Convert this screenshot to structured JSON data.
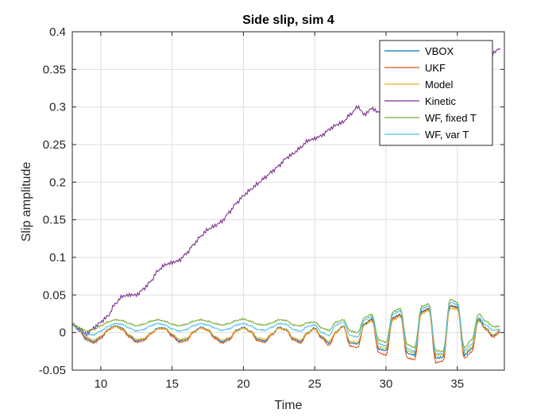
{
  "chart_data": {
    "type": "line",
    "title": "Side slip, sim 4",
    "xlabel": "Time",
    "ylabel": "Slip amplitude",
    "xlim": [
      8,
      38.3
    ],
    "ylim": [
      -0.05,
      0.4
    ],
    "xticks": [
      10,
      15,
      20,
      25,
      30,
      35
    ],
    "yticks": [
      -0.05,
      0,
      0.05,
      0.1,
      0.15,
      0.2,
      0.25,
      0.3,
      0.35,
      0.4
    ],
    "ytick_labels": [
      "-0.05",
      "0",
      "0.05",
      "0.1",
      "0.15",
      "0.2",
      "0.25",
      "0.3",
      "0.35",
      "0.4"
    ],
    "grid": true,
    "legend_position": "top-right",
    "series": [
      {
        "name": "VBOX",
        "color": "#0072BD",
        "x": [
          8.0,
          8.5,
          9.0,
          9.5,
          10.0,
          10.5,
          11.0,
          11.5,
          12.0,
          12.5,
          13.0,
          13.5,
          14.0,
          14.5,
          15.0,
          15.5,
          16.0,
          16.5,
          17.0,
          17.5,
          18.0,
          18.5,
          19.0,
          19.5,
          20.0,
          20.5,
          21.0,
          21.5,
          22.0,
          22.5,
          23.0,
          23.5,
          24.0,
          24.5,
          25.0,
          25.5,
          26.0,
          26.5,
          27.0,
          27.5,
          28.0,
          28.5,
          29.0,
          29.5,
          30.0,
          30.5,
          31.0,
          31.5,
          32.0,
          32.5,
          33.0,
          33.5,
          34.0,
          34.5,
          35.0,
          35.5,
          36.0,
          36.5,
          37.0,
          37.5,
          38.0
        ],
        "y": [
          0.012,
          0.004,
          -0.008,
          -0.012,
          -0.006,
          0.004,
          0.009,
          0.006,
          -0.004,
          -0.011,
          -0.009,
          -0.001,
          0.006,
          0.006,
          -0.003,
          -0.011,
          -0.009,
          0.001,
          0.007,
          0.004,
          -0.006,
          -0.012,
          -0.008,
          0.003,
          0.007,
          0.002,
          -0.009,
          -0.011,
          -0.002,
          0.007,
          0.004,
          -0.008,
          -0.012,
          0.0,
          0.006,
          -0.006,
          -0.014,
          0.001,
          0.009,
          -0.014,
          -0.015,
          0.012,
          0.018,
          -0.022,
          -0.024,
          0.02,
          0.024,
          -0.028,
          -0.03,
          0.028,
          0.032,
          -0.034,
          -0.033,
          0.036,
          0.034,
          -0.03,
          -0.022,
          0.018,
          0.006,
          -0.004,
          0.002
        ]
      },
      {
        "name": "UKF",
        "color": "#D95319",
        "x": [
          8.0,
          8.5,
          9.0,
          9.5,
          10.0,
          10.5,
          11.0,
          11.5,
          12.0,
          12.5,
          13.0,
          13.5,
          14.0,
          14.5,
          15.0,
          15.5,
          16.0,
          16.5,
          17.0,
          17.5,
          18.0,
          18.5,
          19.0,
          19.5,
          20.0,
          20.5,
          21.0,
          21.5,
          22.0,
          22.5,
          23.0,
          23.5,
          24.0,
          24.5,
          25.0,
          25.5,
          26.0,
          26.5,
          27.0,
          27.5,
          28.0,
          28.5,
          29.0,
          29.5,
          30.0,
          30.5,
          31.0,
          31.5,
          32.0,
          32.5,
          33.0,
          33.5,
          34.0,
          34.5,
          35.0,
          35.5,
          36.0,
          36.5,
          37.0,
          37.5,
          38.0
        ],
        "y": [
          0.01,
          0.002,
          -0.01,
          -0.014,
          -0.008,
          0.003,
          0.008,
          0.004,
          -0.006,
          -0.013,
          -0.011,
          -0.002,
          0.005,
          0.005,
          -0.005,
          -0.013,
          -0.011,
          0.0,
          0.006,
          0.003,
          -0.008,
          -0.014,
          -0.01,
          0.002,
          0.006,
          0.001,
          -0.011,
          -0.013,
          -0.003,
          0.006,
          0.003,
          -0.01,
          -0.014,
          -0.001,
          0.005,
          -0.008,
          -0.017,
          0.0,
          0.008,
          -0.018,
          -0.02,
          0.011,
          0.017,
          -0.027,
          -0.03,
          0.019,
          0.023,
          -0.034,
          -0.036,
          0.027,
          0.031,
          -0.04,
          -0.038,
          0.035,
          0.033,
          -0.034,
          -0.026,
          0.016,
          0.004,
          -0.006,
          0.0
        ]
      },
      {
        "name": "Model",
        "color": "#EDB120",
        "x": [
          8.0,
          8.5,
          9.0,
          9.5,
          10.0,
          10.5,
          11.0,
          11.5,
          12.0,
          12.5,
          13.0,
          13.5,
          14.0,
          14.5,
          15.0,
          15.5,
          16.0,
          16.5,
          17.0,
          17.5,
          18.0,
          18.5,
          19.0,
          19.5,
          20.0,
          20.5,
          21.0,
          21.5,
          22.0,
          22.5,
          23.0,
          23.5,
          24.0,
          24.5,
          25.0,
          25.5,
          26.0,
          26.5,
          27.0,
          27.5,
          28.0,
          28.5,
          29.0,
          29.5,
          30.0,
          30.5,
          31.0,
          31.5,
          32.0,
          32.5,
          33.0,
          33.5,
          34.0,
          34.5,
          35.0,
          35.5,
          36.0,
          36.5,
          37.0,
          37.5,
          38.0
        ],
        "y": [
          0.011,
          0.004,
          -0.006,
          -0.01,
          -0.005,
          0.004,
          0.008,
          0.005,
          -0.003,
          -0.009,
          -0.008,
          -0.001,
          0.005,
          0.005,
          -0.002,
          -0.009,
          -0.008,
          0.001,
          0.006,
          0.004,
          -0.005,
          -0.01,
          -0.007,
          0.002,
          0.006,
          0.002,
          -0.007,
          -0.009,
          -0.002,
          0.006,
          0.004,
          -0.007,
          -0.01,
          0.0,
          0.005,
          -0.005,
          -0.012,
          0.001,
          0.008,
          -0.012,
          -0.013,
          0.01,
          0.015,
          -0.019,
          -0.021,
          0.017,
          0.021,
          -0.025,
          -0.027,
          0.025,
          0.029,
          -0.03,
          -0.03,
          0.032,
          0.031,
          -0.027,
          -0.02,
          0.015,
          0.005,
          -0.003,
          0.002
        ]
      },
      {
        "name": "Kinetic",
        "color": "#7E2F8E",
        "x": [
          8.0,
          8.5,
          9.0,
          9.5,
          10.0,
          10.5,
          11.0,
          11.5,
          12.0,
          12.5,
          13.0,
          13.5,
          14.0,
          14.5,
          15.0,
          15.5,
          16.0,
          16.5,
          17.0,
          17.5,
          18.0,
          18.5,
          19.0,
          19.5,
          20.0,
          20.5,
          21.0,
          21.5,
          22.0,
          22.5,
          23.0,
          23.5,
          24.0,
          24.5,
          25.0,
          25.5,
          26.0,
          26.5,
          27.0,
          27.5,
          28.0,
          28.5,
          29.0,
          29.5,
          30.0,
          30.5,
          31.0,
          31.5,
          32.0,
          32.5,
          33.0,
          33.5,
          34.0,
          34.5,
          35.0,
          35.5,
          36.0,
          36.5,
          37.0,
          37.5,
          38.0
        ],
        "y": [
          0.012,
          0.005,
          -0.002,
          0.006,
          0.014,
          0.022,
          0.038,
          0.048,
          0.05,
          0.05,
          0.058,
          0.068,
          0.082,
          0.09,
          0.093,
          0.096,
          0.105,
          0.117,
          0.128,
          0.137,
          0.142,
          0.148,
          0.16,
          0.172,
          0.182,
          0.19,
          0.198,
          0.206,
          0.214,
          0.222,
          0.232,
          0.238,
          0.246,
          0.255,
          0.258,
          0.262,
          0.27,
          0.276,
          0.28,
          0.29,
          0.3,
          0.29,
          0.298,
          0.293,
          0.285,
          0.29,
          0.3,
          0.298,
          0.305,
          0.315,
          0.318,
          0.325,
          0.33,
          0.338,
          0.342,
          0.348,
          0.355,
          0.36,
          0.365,
          0.372,
          0.378
        ]
      },
      {
        "name": "WF, fixed T",
        "color": "#77AC30",
        "x": [
          8.0,
          8.5,
          9.0,
          9.5,
          10.0,
          10.5,
          11.0,
          11.5,
          12.0,
          12.5,
          13.0,
          13.5,
          14.0,
          14.5,
          15.0,
          15.5,
          16.0,
          16.5,
          17.0,
          17.5,
          18.0,
          18.5,
          19.0,
          19.5,
          20.0,
          20.5,
          21.0,
          21.5,
          22.0,
          22.5,
          23.0,
          23.5,
          24.0,
          24.5,
          25.0,
          25.5,
          26.0,
          26.5,
          27.0,
          27.5,
          28.0,
          28.5,
          29.0,
          29.5,
          30.0,
          30.5,
          31.0,
          31.5,
          32.0,
          32.5,
          33.0,
          33.5,
          34.0,
          34.5,
          35.0,
          35.5,
          36.0,
          36.5,
          37.0,
          37.5,
          38.0
        ],
        "y": [
          0.012,
          0.006,
          0.002,
          0.004,
          0.009,
          0.014,
          0.017,
          0.016,
          0.012,
          0.009,
          0.011,
          0.015,
          0.017,
          0.015,
          0.011,
          0.009,
          0.011,
          0.015,
          0.017,
          0.015,
          0.012,
          0.01,
          0.012,
          0.016,
          0.018,
          0.015,
          0.011,
          0.01,
          0.013,
          0.017,
          0.016,
          0.01,
          0.009,
          0.013,
          0.014,
          0.006,
          0.003,
          0.014,
          0.017,
          0.002,
          0.0,
          0.02,
          0.024,
          -0.01,
          -0.013,
          0.028,
          0.032,
          -0.016,
          -0.02,
          0.035,
          0.038,
          -0.024,
          -0.025,
          0.044,
          0.04,
          -0.02,
          -0.01,
          0.025,
          0.015,
          0.008,
          0.008
        ]
      },
      {
        "name": "WF, var T",
        "color": "#4DBEEE",
        "x": [
          8.0,
          8.5,
          9.0,
          9.5,
          10.0,
          10.5,
          11.0,
          11.5,
          12.0,
          12.5,
          13.0,
          13.5,
          14.0,
          14.5,
          15.0,
          15.5,
          16.0,
          16.5,
          17.0,
          17.5,
          18.0,
          18.5,
          19.0,
          19.5,
          20.0,
          20.5,
          21.0,
          21.5,
          22.0,
          22.5,
          23.0,
          23.5,
          24.0,
          24.5,
          25.0,
          25.5,
          26.0,
          26.5,
          27.0,
          27.5,
          28.0,
          28.5,
          29.0,
          29.5,
          30.0,
          30.5,
          31.0,
          31.5,
          32.0,
          32.5,
          33.0,
          33.5,
          34.0,
          34.5,
          35.0,
          35.5,
          36.0,
          36.5,
          37.0,
          37.5,
          38.0
        ],
        "y": [
          0.01,
          0.003,
          -0.003,
          -0.003,
          0.002,
          0.008,
          0.012,
          0.011,
          0.006,
          0.002,
          0.004,
          0.009,
          0.012,
          0.01,
          0.005,
          0.002,
          0.004,
          0.009,
          0.012,
          0.01,
          0.006,
          0.003,
          0.005,
          0.01,
          0.012,
          0.009,
          0.004,
          0.003,
          0.007,
          0.012,
          0.011,
          0.004,
          0.002,
          0.008,
          0.01,
          0.0,
          -0.004,
          0.01,
          0.014,
          -0.004,
          -0.006,
          0.017,
          0.021,
          -0.015,
          -0.018,
          0.025,
          0.029,
          -0.022,
          -0.025,
          0.032,
          0.035,
          -0.028,
          -0.028,
          0.04,
          0.037,
          -0.024,
          -0.016,
          0.02,
          0.01,
          0.003,
          0.004
        ]
      }
    ]
  }
}
